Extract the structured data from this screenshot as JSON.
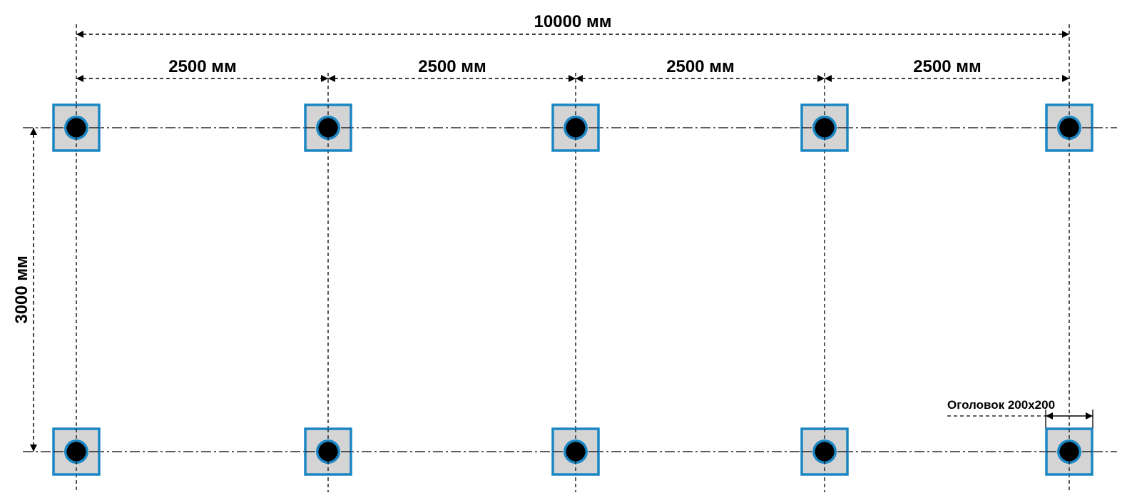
{
  "total_length_label": "10000 мм",
  "spans": [
    {
      "label": "2500 мм"
    },
    {
      "label": "2500 мм"
    },
    {
      "label": "2500 мм"
    },
    {
      "label": "2500 мм"
    }
  ],
  "width_label": "3000 мм",
  "cap_note": "Оголовок 200х200",
  "colors": {
    "cap_fill": "#d4d4d4",
    "cap_border": "#1a87c4",
    "pile": "#000000",
    "ring": "#1a87c4"
  }
}
